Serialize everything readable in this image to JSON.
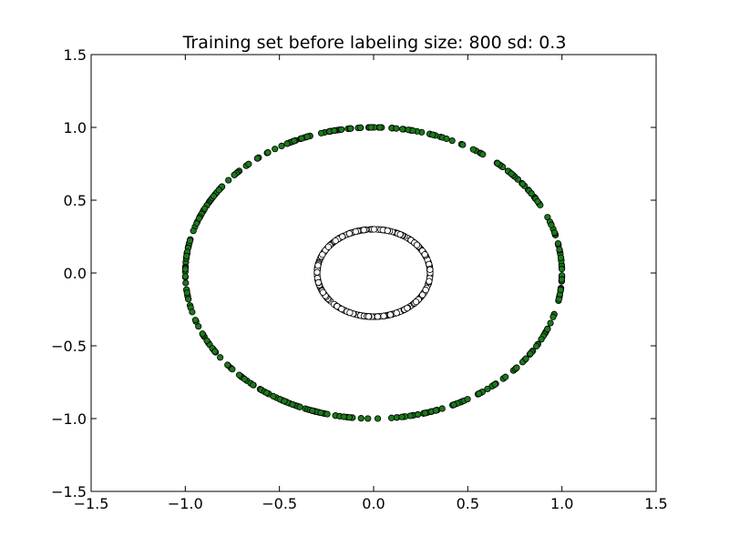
{
  "chart_data": {
    "type": "scatter",
    "title": "Training set before labeling size: 800 sd: 0.3",
    "xlabel": "",
    "ylabel": "",
    "xlim": [
      -1.5,
      1.5
    ],
    "ylim": [
      -1.5,
      1.5
    ],
    "x_ticks": [
      -1.5,
      -1.0,
      -0.5,
      0.0,
      0.5,
      1.0,
      1.5
    ],
    "x_tick_labels": [
      "−1.5",
      "−1.0",
      "−0.5",
      "0.0",
      "0.5",
      "1.0",
      "1.5"
    ],
    "y_ticks": [
      -1.5,
      -1.0,
      -0.5,
      0.0,
      0.5,
      1.0,
      1.5
    ],
    "y_tick_labels": [
      "−1.5",
      "−1.0",
      "−0.5",
      "0.0",
      "0.5",
      "1.0",
      "1.5"
    ],
    "grid": false,
    "legend": "none",
    "series": [
      {
        "shape": "circle",
        "radius": 1.0,
        "center": [
          0,
          0
        ],
        "color": "#1a7a1a",
        "edge_color": "#000000",
        "points": 400
      },
      {
        "shape": "circle",
        "radius": 0.3,
        "center": [
          0,
          0
        ],
        "color": "#ffffff",
        "edge_color": "#000000",
        "points": 400
      }
    ]
  }
}
